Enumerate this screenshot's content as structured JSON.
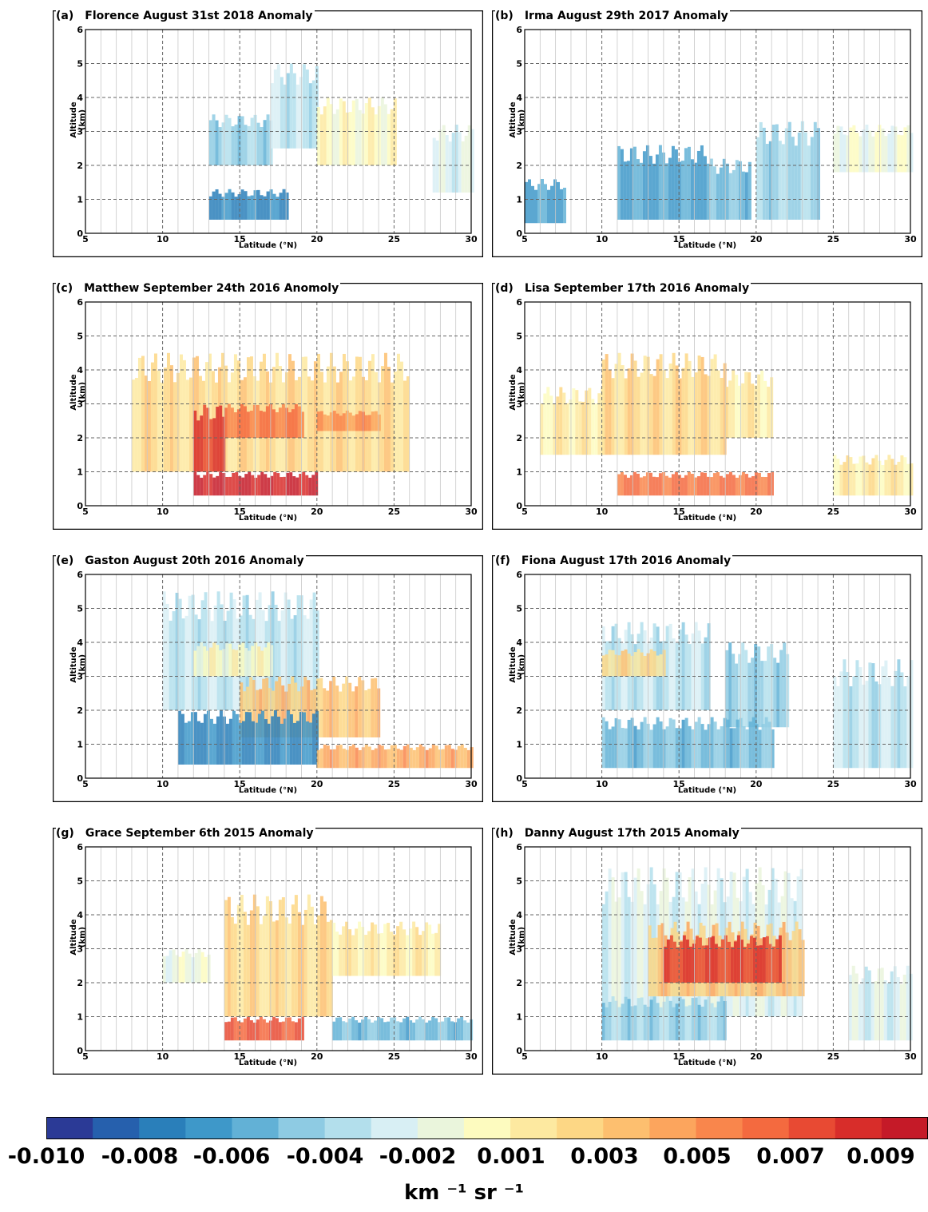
{
  "chart_data": [
    {
      "type": "heatmap",
      "panel": "(a)",
      "title": "Florence August 31st 2018 Anomaly",
      "xlabel": "Latitude (°N)",
      "ylabel": "Altitude (km)",
      "xlim": [
        5,
        30
      ],
      "ylim": [
        0,
        6
      ],
      "xticks": [
        "5",
        "10",
        "15",
        "20",
        "25",
        "30"
      ],
      "yticks": [
        "0",
        "1",
        "2",
        "3",
        "4",
        "5",
        "6"
      ],
      "grid": true,
      "blobs": [
        {
          "lat": [
            13,
            17
          ],
          "alt": [
            2,
            3.5
          ],
          "v": -0.004
        },
        {
          "lat": [
            17,
            20
          ],
          "alt": [
            2.5,
            5
          ],
          "v": -0.003
        },
        {
          "lat": [
            20,
            25
          ],
          "alt": [
            2,
            4
          ],
          "v": 0.0
        },
        {
          "lat": [
            13,
            18
          ],
          "alt": [
            0.4,
            1.3
          ],
          "v": -0.007
        },
        {
          "lat": [
            27.5,
            30
          ],
          "alt": [
            1.2,
            3.2
          ],
          "v": -0.002
        }
      ]
    },
    {
      "type": "heatmap",
      "panel": "(b)",
      "title": "Irma August 29th 2017 Anomaly",
      "xlabel": "Latitude (°N)",
      "ylabel": "Altitude (km)",
      "xlim": [
        5,
        30
      ],
      "ylim": [
        0,
        6
      ],
      "xticks": [
        "5",
        "10",
        "15",
        "20",
        "25",
        "30"
      ],
      "yticks": [
        "0",
        "1",
        "2",
        "3",
        "4",
        "5",
        "6"
      ],
      "grid": true,
      "blobs": [
        {
          "lat": [
            5,
            7.5
          ],
          "alt": [
            0.3,
            1.6
          ],
          "v": -0.006
        },
        {
          "lat": [
            11,
            17
          ],
          "alt": [
            0.4,
            2.6
          ],
          "v": -0.006
        },
        {
          "lat": [
            17,
            19.5
          ],
          "alt": [
            0.4,
            2.2
          ],
          "v": -0.005
        },
        {
          "lat": [
            20,
            24
          ],
          "alt": [
            0.4,
            3.3
          ],
          "v": -0.004
        },
        {
          "lat": [
            25,
            30
          ],
          "alt": [
            1.8,
            3.2
          ],
          "v": -0.001
        }
      ]
    },
    {
      "type": "heatmap",
      "panel": "(c)",
      "title": "Matthew September 24th 2016 Anomoly",
      "xlabel": "Latitude (°N)",
      "ylabel": "Altitude (km)",
      "xlim": [
        5,
        30
      ],
      "ylim": [
        0,
        6
      ],
      "xticks": [
        "5",
        "10",
        "15",
        "20",
        "25",
        "30"
      ],
      "yticks": [
        "0",
        "1",
        "2",
        "3",
        "4",
        "5",
        "6"
      ],
      "grid": true,
      "blobs": [
        {
          "lat": [
            8,
            26
          ],
          "alt": [
            1,
            4.5
          ],
          "v": 0.002
        },
        {
          "lat": [
            12,
            14
          ],
          "alt": [
            1,
            3
          ],
          "v": 0.008
        },
        {
          "lat": [
            14,
            19
          ],
          "alt": [
            2,
            3
          ],
          "v": 0.006
        },
        {
          "lat": [
            20,
            24
          ],
          "alt": [
            2.2,
            2.8
          ],
          "v": 0.005
        },
        {
          "lat": [
            12,
            20
          ],
          "alt": [
            0.3,
            1
          ],
          "v": 0.009
        }
      ]
    },
    {
      "type": "heatmap",
      "panel": "(d)",
      "title": "Lisa September 17th 2016 Anomaly",
      "xlabel": "Latitude (°N)",
      "ylabel": "Altitude (km)",
      "xlim": [
        5,
        30
      ],
      "ylim": [
        0,
        6
      ],
      "xticks": [
        "5",
        "10",
        "15",
        "20",
        "25",
        "30"
      ],
      "yticks": [
        "0",
        "1",
        "2",
        "3",
        "4",
        "5",
        "6"
      ],
      "grid": true,
      "blobs": [
        {
          "lat": [
            10,
            18
          ],
          "alt": [
            1.5,
            4.5
          ],
          "v": 0.002
        },
        {
          "lat": [
            6,
            10
          ],
          "alt": [
            1.5,
            3.5
          ],
          "v": 0.001
        },
        {
          "lat": [
            18,
            21
          ],
          "alt": [
            2,
            4
          ],
          "v": 0.001
        },
        {
          "lat": [
            11,
            21
          ],
          "alt": [
            0.3,
            1
          ],
          "v": 0.006
        },
        {
          "lat": [
            25,
            30
          ],
          "alt": [
            0.3,
            1.5
          ],
          "v": 0.001
        }
      ]
    },
    {
      "type": "heatmap",
      "panel": "(e)",
      "title": "Gaston August 20th 2016 Anomaly",
      "xlabel": "Latitude (°N)",
      "ylabel": "Altitude (km)",
      "xlim": [
        5,
        30
      ],
      "ylim": [
        0,
        6
      ],
      "xticks": [
        "5",
        "10",
        "15",
        "20",
        "25",
        "30"
      ],
      "yticks": [
        "0",
        "1",
        "2",
        "3",
        "4",
        "5",
        "6"
      ],
      "grid": true,
      "blobs": [
        {
          "lat": [
            10,
            20
          ],
          "alt": [
            2,
            5.5
          ],
          "v": -0.003
        },
        {
          "lat": [
            12,
            17
          ],
          "alt": [
            3,
            4
          ],
          "v": 0.0
        },
        {
          "lat": [
            15,
            24
          ],
          "alt": [
            1.2,
            3
          ],
          "v": 0.003
        },
        {
          "lat": [
            11,
            20
          ],
          "alt": [
            0.4,
            2
          ],
          "v": -0.007
        },
        {
          "lat": [
            20,
            30
          ],
          "alt": [
            0.3,
            1
          ],
          "v": 0.004
        }
      ]
    },
    {
      "type": "heatmap",
      "panel": "(f)",
      "title": "Fiona August 17th 2016 Anomaly",
      "xlabel": "Latitude (°N)",
      "ylabel": "Altitude (km)",
      "xlim": [
        5,
        30
      ],
      "ylim": [
        0,
        6
      ],
      "xticks": [
        "5",
        "10",
        "15",
        "20",
        "25",
        "30"
      ],
      "yticks": [
        "0",
        "1",
        "2",
        "3",
        "4",
        "5",
        "6"
      ],
      "grid": true,
      "blobs": [
        {
          "lat": [
            10,
            17
          ],
          "alt": [
            2,
            4.6
          ],
          "v": -0.003
        },
        {
          "lat": [
            10,
            14
          ],
          "alt": [
            3,
            3.8
          ],
          "v": 0.002
        },
        {
          "lat": [
            18,
            22
          ],
          "alt": [
            1.5,
            4
          ],
          "v": -0.004
        },
        {
          "lat": [
            10,
            21
          ],
          "alt": [
            0.3,
            1.8
          ],
          "v": -0.005
        },
        {
          "lat": [
            25,
            30
          ],
          "alt": [
            0.3,
            3.5
          ],
          "v": -0.003
        }
      ]
    },
    {
      "type": "heatmap",
      "panel": "(g)",
      "title": "Grace September 6th 2015 Anomaly",
      "xlabel": "Latitude (°N)",
      "ylabel": "Altitude (km)",
      "xlim": [
        5,
        30
      ],
      "ylim": [
        0,
        6
      ],
      "xticks": [
        "5",
        "10",
        "15",
        "20",
        "25",
        "30"
      ],
      "yticks": [
        "0",
        "1",
        "2",
        "3",
        "4",
        "5",
        "6"
      ],
      "grid": true,
      "blobs": [
        {
          "lat": [
            14,
            21
          ],
          "alt": [
            1,
            4.6
          ],
          "v": 0.002
        },
        {
          "lat": [
            21,
            28
          ],
          "alt": [
            2.2,
            3.8
          ],
          "v": 0.001
        },
        {
          "lat": [
            14,
            19
          ],
          "alt": [
            0.3,
            1
          ],
          "v": 0.007
        },
        {
          "lat": [
            21,
            30
          ],
          "alt": [
            0.3,
            1
          ],
          "v": -0.005
        },
        {
          "lat": [
            10,
            13
          ],
          "alt": [
            2,
            3
          ],
          "v": -0.001
        }
      ]
    },
    {
      "type": "heatmap",
      "panel": "(h)",
      "title": "Danny August 17th 2015 Anomaly",
      "xlabel": "Latitude (°N)",
      "ylabel": "Altitude (km)",
      "xlim": [
        5,
        30
      ],
      "ylim": [
        0,
        6
      ],
      "xticks": [
        "5",
        "10",
        "15",
        "20",
        "25",
        "30"
      ],
      "yticks": [
        "0",
        "1",
        "2",
        "3",
        "4",
        "5",
        "6"
      ],
      "grid": true,
      "blobs": [
        {
          "lat": [
            10,
            23
          ],
          "alt": [
            1,
            5.4
          ],
          "v": -0.002
        },
        {
          "lat": [
            13,
            23
          ],
          "alt": [
            1.6,
            3.8
          ],
          "v": 0.003
        },
        {
          "lat": [
            14,
            21.5
          ],
          "alt": [
            2,
            3.4
          ],
          "v": 0.008
        },
        {
          "lat": [
            10,
            18
          ],
          "alt": [
            0.3,
            1.6
          ],
          "v": -0.004
        },
        {
          "lat": [
            26,
            30
          ],
          "alt": [
            0.3,
            2.5
          ],
          "v": -0.002
        }
      ]
    }
  ],
  "colorbar": {
    "colors": [
      "#2b3a96",
      "#2660ad",
      "#2a7fba",
      "#3e98c9",
      "#62b1d6",
      "#8ecbe3",
      "#b3dfec",
      "#d8eff4",
      "#eaf5dc",
      "#fdfbbf",
      "#fde9a0",
      "#fdd785",
      "#fdbf6f",
      "#fca55d",
      "#f9864c",
      "#f46a3f",
      "#e84a33",
      "#d82d2a",
      "#c51a28"
    ],
    "ticks": [
      "-0.010",
      "-0.008",
      "-0.006",
      "-0.004",
      "-0.002",
      "0.001",
      "0.003",
      "0.005",
      "0.007",
      "0.009"
    ],
    "label": "km ⁻¹ sr ⁻¹"
  }
}
